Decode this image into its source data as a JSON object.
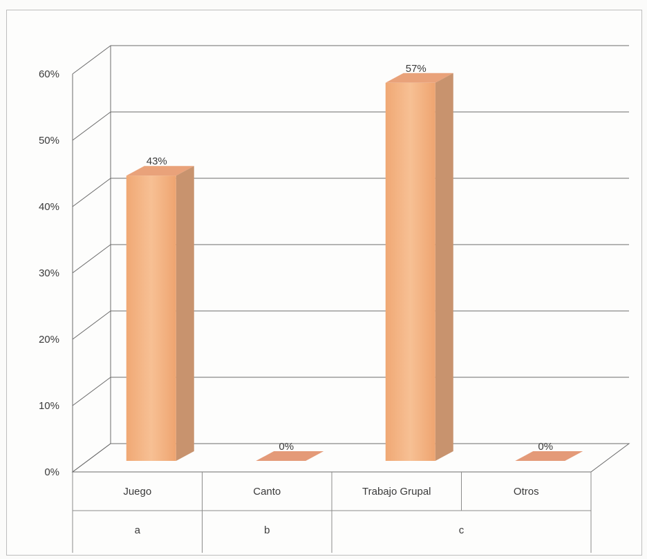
{
  "chart_data": {
    "type": "bar",
    "categories": [
      "Juego",
      "Canto",
      "Trabajo Grupal",
      "Otros"
    ],
    "groups": [
      {
        "label": "a",
        "categories": [
          "Juego"
        ]
      },
      {
        "label": "b",
        "categories": [
          "Canto"
        ]
      },
      {
        "label": "c",
        "categories": [
          "Trabajo Grupal",
          "Otros"
        ]
      }
    ],
    "values": [
      43,
      0,
      57,
      0
    ],
    "data_labels": [
      "43%",
      "0%",
      "57%",
      "0%"
    ],
    "yticks": [
      "0%",
      "10%",
      "20%",
      "30%",
      "40%",
      "50%",
      "60%"
    ],
    "ylim": [
      0,
      60
    ],
    "grid": true,
    "style": "3d",
    "bar_color": "#f2b07c"
  }
}
